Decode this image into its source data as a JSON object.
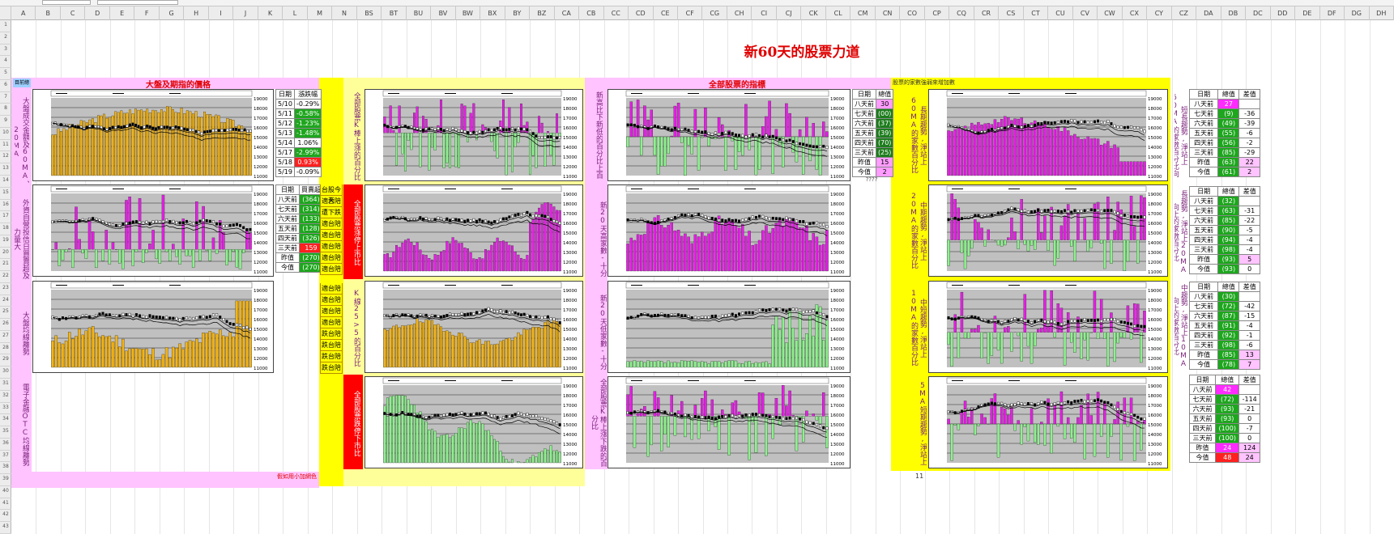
{
  "columns": [
    "A",
    "B",
    "C",
    "D",
    "E",
    "F",
    "G",
    "H",
    "I",
    "J",
    "K",
    "L",
    "M",
    "N",
    "BS",
    "BT",
    "BU",
    "BV",
    "BW",
    "BX",
    "BY",
    "BZ",
    "CA",
    "CB",
    "CC",
    "CD",
    "CE",
    "CF",
    "CG",
    "CH",
    "CI",
    "CJ",
    "CK",
    "CL",
    "CM",
    "CN",
    "CO",
    "CP",
    "CQ",
    "CR",
    "CS",
    "CT",
    "CU",
    "CV",
    "CW",
    "CX",
    "CY",
    "CZ",
    "DA",
    "DB",
    "DC",
    "DD",
    "DE",
    "DF",
    "DG",
    "DH"
  ],
  "rows": [
    "1",
    "2",
    "3",
    "4",
    "5",
    "6",
    "7",
    "8",
    "9",
    "10",
    "11",
    "12",
    "13",
    "14",
    "15",
    "16",
    "17",
    "18",
    "19",
    "20",
    "21",
    "22",
    "23",
    "24",
    "25",
    "26",
    "27",
    "28",
    "29",
    "30",
    "31",
    "32",
    "33",
    "34",
    "35",
    "36",
    "37",
    "38",
    "39",
    "40",
    "41",
    "42",
    "43"
  ],
  "name_box": "A1",
  "main_title": "新60天的股票力道",
  "section_market": {
    "title": "大盤及期指的價格",
    "corner": "目前總"
  },
  "section_stocks": {
    "title": "全部股票的指標"
  },
  "section_right": {
    "header": "股票的家數強弱來增加數"
  },
  "labels": {
    "l1": "大盤成交金額及60MA、20MA",
    "l2": "外資自營投信日買賣超及力量大",
    "l3": "大盤均線離勢",
    "l4": "電子金融OTC均線離勢",
    "m1": "全部股票K棒上漲的百分比",
    "m2": "全部股票漲停上市比",
    "m3": "K線25>5的百分比",
    "m4": "全部股票跌停下市比",
    "s1": "新高比下新低的百分比上百",
    "s2": "新20天高家數-十分",
    "s3": "新20天低家數-十分",
    "s4": "全部股票K棒上漲下跌的百分比",
    "r1": "長期趨勢,淨站上60MA的家數百分比",
    "r2": "中期趨勢,淨站上20MA的家數百分比",
    "r3": "中短趨勢,淨站上10MA的家數百分比",
    "r4": "5MA短期趨勢,淨站上",
    "rr1": "短長趨勢,淨站上60MA的家數百分比向上",
    "rr2": "長趨勢,淨站上20MA向上的家數百分比",
    "rr3": "中趨勢,淨站上10MA向上的家數百分比"
  },
  "tables": {
    "t1": {
      "head": [
        "日期",
        "漲跌幅"
      ],
      "rows": [
        [
          "5/10",
          "-0.29%"
        ],
        [
          "5/11",
          "-0.58%"
        ],
        [
          "5/12",
          "-1.23%"
        ],
        [
          "5/13",
          "-1.48%"
        ],
        [
          "5/14",
          "1.06%"
        ],
        [
          "5/17",
          "-2.99%"
        ],
        [
          "5/18",
          "0.93%"
        ],
        [
          "5/19",
          "-0.09%"
        ]
      ],
      "colors": [
        "c-plain",
        "c-grn",
        "c-grn",
        "c-grn",
        "c-plain",
        "c-grn",
        "c-red",
        "c-plain"
      ]
    },
    "t2": {
      "head": [
        "日期",
        "買賣超"
      ],
      "rows": [
        [
          "八天前",
          "(364)"
        ],
        [
          "七天前",
          "(314)"
        ],
        [
          "六天前",
          "(133)"
        ],
        [
          "五天前",
          "(128)"
        ],
        [
          "四天前",
          "(326)"
        ],
        [
          "三天前",
          "159"
        ],
        [
          "昨值",
          "(270)"
        ],
        [
          "今值",
          "(270)"
        ]
      ],
      "colors": [
        "c-grn",
        "c-grn",
        "c-grn",
        "c-grn",
        "c-grn",
        "c-red",
        "c-grn",
        "c-grn"
      ]
    },
    "t3": {
      "head": [
        "日期",
        "總值"
      ],
      "rows": [
        [
          "八天前",
          "30"
        ],
        [
          "七天前",
          "(00)"
        ],
        [
          "六天前",
          "(37)"
        ],
        [
          "五天前",
          "(39)"
        ],
        [
          "四天前",
          "(70)"
        ],
        [
          "三天前",
          "(25)"
        ],
        [
          "昨值",
          "15"
        ],
        [
          "今值",
          "2"
        ]
      ],
      "colors": [
        "c-pink",
        "c-dg",
        "c-dg",
        "c-dg",
        "c-dg",
        "c-dg",
        "c-pink",
        "c-pink"
      ],
      "foot": "????"
    },
    "t4": {
      "head": [
        "日期",
        "總值",
        "差值"
      ],
      "rows": [
        [
          "八天前",
          "27",
          ""
        ],
        [
          "七天前",
          "(9)",
          "-36"
        ],
        [
          "六天前",
          "(49)",
          "-39"
        ],
        [
          "五天前",
          "(55)",
          "-6"
        ],
        [
          "四天前",
          "(56)",
          "-2"
        ],
        [
          "三天前",
          "(85)",
          "-29"
        ],
        [
          "昨值",
          "(63)",
          "22"
        ],
        [
          "今值",
          "(61)",
          "2"
        ]
      ],
      "colors": [
        "c-mag",
        "c-grn",
        "c-grn",
        "c-grn",
        "c-grn",
        "c-grn",
        "c-grn",
        "c-grn"
      ]
    },
    "t5": {
      "head": [
        "日期",
        "總值",
        "差值"
      ],
      "rows": [
        [
          "八天前",
          "(32)",
          ""
        ],
        [
          "七天前",
          "(63)",
          "-31"
        ],
        [
          "六天前",
          "(85)",
          "-22"
        ],
        [
          "五天前",
          "(90)",
          "-5"
        ],
        [
          "四天前",
          "(94)",
          "-4"
        ],
        [
          "三天前",
          "(98)",
          "-4"
        ],
        [
          "昨值",
          "(93)",
          "5"
        ],
        [
          "今值",
          "(93)",
          "0"
        ]
      ],
      "colors": [
        "c-grn",
        "c-grn",
        "c-grn",
        "c-grn",
        "c-grn",
        "c-grn",
        "c-grn",
        "c-grn"
      ]
    },
    "t6": {
      "head": [
        "日期",
        "總值",
        "差值"
      ],
      "rows": [
        [
          "八天前",
          "(30)",
          ""
        ],
        [
          "七天前",
          "(72)",
          "-42"
        ],
        [
          "六天前",
          "(87)",
          "-15"
        ],
        [
          "五天前",
          "(91)",
          "-4"
        ],
        [
          "四天前",
          "(92)",
          "-1"
        ],
        [
          "三天前",
          "(98)",
          "-6"
        ],
        [
          "昨值",
          "(85)",
          "13"
        ],
        [
          "今值",
          "(78)",
          "7"
        ]
      ],
      "colors": [
        "c-grn",
        "c-grn",
        "c-grn",
        "c-grn",
        "c-grn",
        "c-grn",
        "c-grn",
        "c-grn"
      ]
    },
    "t7": {
      "head": [
        "日期",
        "總值",
        "差值"
      ],
      "rows": [
        [
          "八天前",
          "42",
          ""
        ],
        [
          "七天前",
          "(72)",
          "-114"
        ],
        [
          "六天前",
          "(93)",
          "-21"
        ],
        [
          "五天前",
          "(93)",
          "0"
        ],
        [
          "四天前",
          "(100)",
          "-7"
        ],
        [
          "三天前",
          "(100)",
          "0"
        ],
        [
          "昨值",
          "24",
          "124"
        ],
        [
          "今值",
          "48",
          "24"
        ]
      ],
      "colors": [
        "c-mag",
        "c-grn",
        "c-grn",
        "c-grn",
        "c-grn",
        "c-grn",
        "c-mag",
        "c-red"
      ]
    }
  },
  "yellow_list1": {
    "head": "台股今天",
    "items": [
      "適台陪",
      "遭下跌",
      "適台陪",
      "適台陪",
      "適台陪",
      "適台陪",
      "適台陪"
    ]
  },
  "yellow_list2": {
    "items": [
      "適台陪",
      "適台陪",
      "適台陪",
      "適台陪",
      "跌台陪",
      "跌台陪",
      "跌台陪",
      "跌台陪"
    ]
  },
  "footnote": "假如用小加網色",
  "page_num": "11",
  "chart_legend": "股票加權指數",
  "colors": {
    "gold": "#f4b414",
    "magenta": "#e61ee6",
    "lightgreen": "#8ef08e",
    "pink": "#ffc3ff",
    "yellow": "#ffff00",
    "red": "#ff0000",
    "title_red": "#e00000"
  }
}
